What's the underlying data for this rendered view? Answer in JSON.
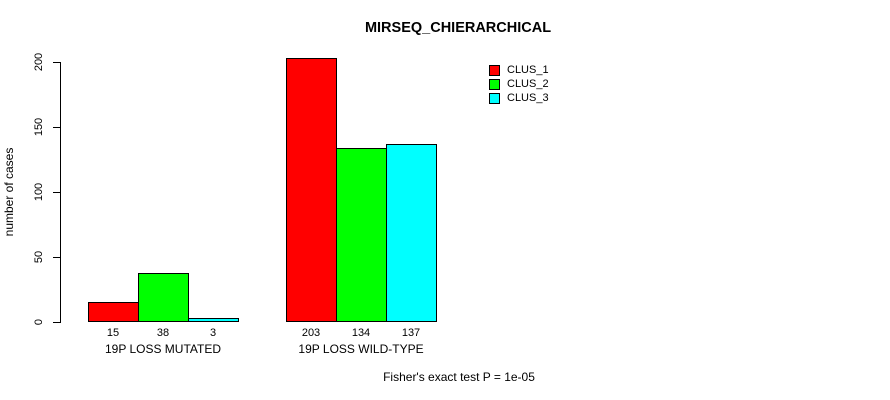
{
  "title": "MIRSEQ_CHIERARCHICAL",
  "y_axis": {
    "label": "number of cases"
  },
  "footer": "Fisher's exact test P = 1e-05",
  "legend": {
    "items": [
      {
        "label": "CLUS_1",
        "color": "#ff0000"
      },
      {
        "label": "CLUS_2",
        "color": "#00ff00"
      },
      {
        "label": "CLUS_3",
        "color": "#00ffff"
      }
    ]
  },
  "chart_data": {
    "type": "bar",
    "title": "MIRSEQ_CHIERARCHICAL",
    "categories": [
      "19P LOSS MUTATED",
      "19P LOSS WILD-TYPE"
    ],
    "series": [
      {
        "name": "CLUS_1",
        "color": "#ff0000",
        "values": [
          15,
          203
        ]
      },
      {
        "name": "CLUS_2",
        "color": "#00ff00",
        "values": [
          38,
          134
        ]
      },
      {
        "name": "CLUS_3",
        "color": "#00ffff",
        "values": [
          3,
          137
        ]
      }
    ],
    "value_labels": [
      [
        15,
        38,
        3
      ],
      [
        203,
        134,
        137
      ]
    ],
    "xlabel": "",
    "ylabel": "number of cases",
    "ylim": [
      0,
      200
    ],
    "yticks": [
      0,
      50,
      100,
      150,
      200
    ],
    "grid": false,
    "legend_position": "top-right",
    "annotation": "Fisher's exact test P = 1e-05"
  }
}
